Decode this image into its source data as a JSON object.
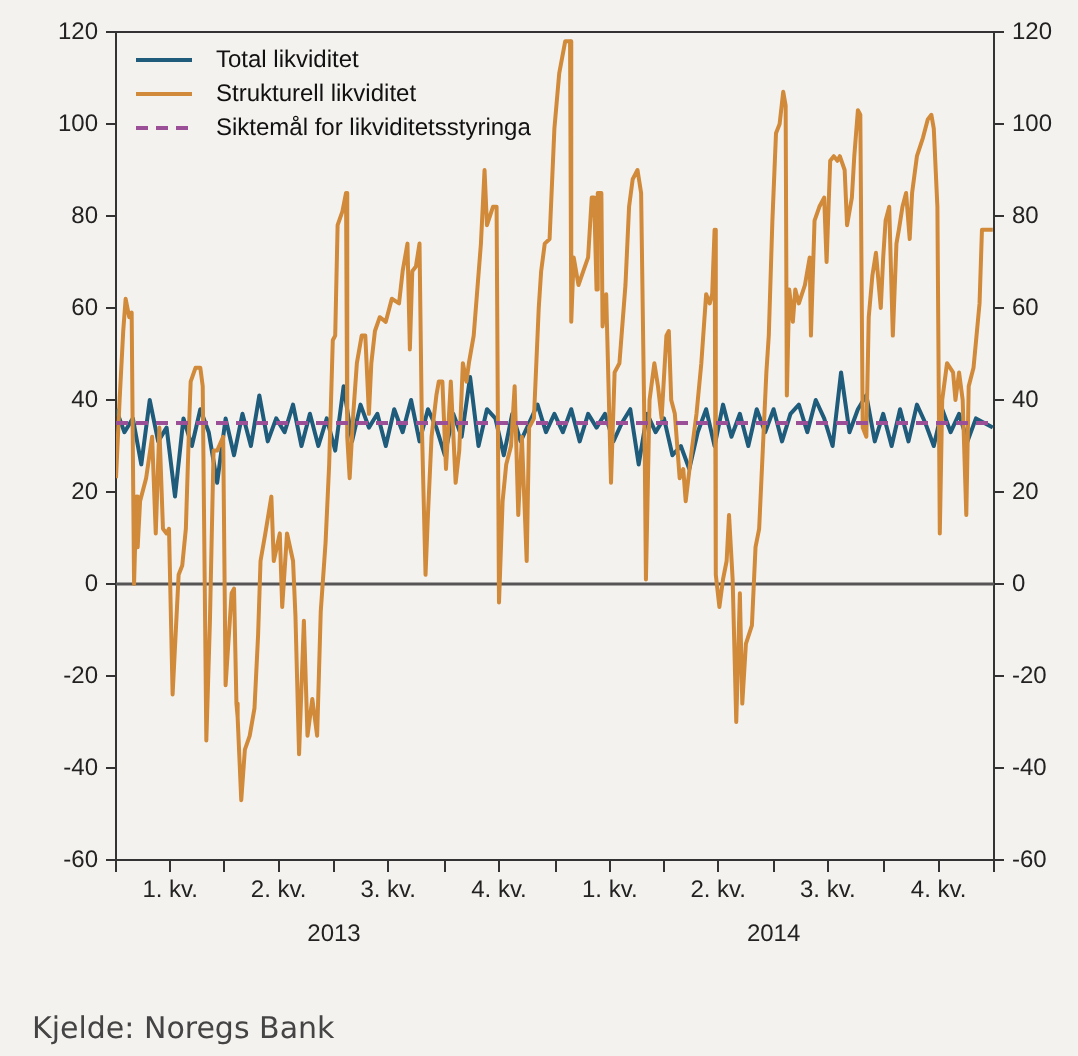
{
  "chart_data": {
    "type": "line",
    "xlim": [
      "2013-01-01",
      "2014-12-31"
    ],
    "xticks": [
      {
        "value": "2013-01-01",
        "label": null
      },
      {
        "value": "2013-02-15",
        "label": "1. kv."
      },
      {
        "value": "2013-04-01",
        "label": null
      },
      {
        "value": "2013-05-16",
        "label": "2. kv."
      },
      {
        "value": "2013-07-01",
        "label": null
      },
      {
        "value": "2013-08-15",
        "label": "3. kv."
      },
      {
        "value": "2013-10-01",
        "label": null
      },
      {
        "value": "2013-11-15",
        "label": "4. kv."
      },
      {
        "value": "2014-01-01",
        "label": null
      },
      {
        "value": "2014-02-15",
        "label": "1. kv."
      },
      {
        "value": "2014-04-01",
        "label": null
      },
      {
        "value": "2014-05-16",
        "label": "2. kv."
      },
      {
        "value": "2014-07-01",
        "label": null
      },
      {
        "value": "2014-08-15",
        "label": "3. kv."
      },
      {
        "value": "2014-10-01",
        "label": null
      },
      {
        "value": "2014-11-15",
        "label": "4. kv."
      },
      {
        "value": "2014-12-31",
        "label": null
      }
    ],
    "x2lim": [
      "2013-01-01",
      "2014-12-31"
    ],
    "x2ticks": [
      {
        "value": "2013-07-01",
        "label": "2013"
      },
      {
        "value": "2014-07-01",
        "label": "2014"
      }
    ],
    "ylim": [
      -60,
      120
    ],
    "yticks": [
      -60,
      -40,
      -20,
      0,
      20,
      40,
      60,
      80,
      100,
      120
    ],
    "y2lim": [
      -60,
      120
    ],
    "y2ticks": [
      -60,
      -40,
      -20,
      0,
      20,
      40,
      60,
      80,
      100,
      120
    ],
    "grid": false,
    "legend": "top left",
    "marker": "none",
    "ref_lines": [
      {
        "axis": "y",
        "value": 0,
        "color": "#555555"
      }
    ],
    "annotations": [
      "Kjelde: Noregs Bank"
    ],
    "series": [
      {
        "name": "Total likviditet",
        "color": "#1f5b7a",
        "line_style": "solid",
        "x": [
          "2013-01-01",
          "2013-01-08",
          "2013-01-15",
          "2013-01-22",
          "2013-01-29",
          "2013-02-05",
          "2013-02-12",
          "2013-02-19",
          "2013-02-26",
          "2013-03-05",
          "2013-03-12",
          "2013-03-19",
          "2013-03-26",
          "2013-04-02",
          "2013-04-09",
          "2013-04-16",
          "2013-04-23",
          "2013-04-30",
          "2013-05-07",
          "2013-05-14",
          "2013-05-21",
          "2013-05-28",
          "2013-06-04",
          "2013-06-11",
          "2013-06-18",
          "2013-06-25",
          "2013-07-02",
          "2013-07-09",
          "2013-07-16",
          "2013-07-23",
          "2013-07-30",
          "2013-08-06",
          "2013-08-13",
          "2013-08-20",
          "2013-08-27",
          "2013-09-03",
          "2013-09-10",
          "2013-09-17",
          "2013-09-24",
          "2013-10-01",
          "2013-10-08",
          "2013-10-15",
          "2013-10-22",
          "2013-10-29",
          "2013-11-05",
          "2013-11-12",
          "2013-11-19",
          "2013-11-26",
          "2013-12-03",
          "2013-12-10",
          "2013-12-17",
          "2013-12-24",
          "2013-12-31",
          "2014-01-07",
          "2014-01-14",
          "2014-01-21",
          "2014-01-28",
          "2014-02-04",
          "2014-02-11",
          "2014-02-18",
          "2014-02-25",
          "2014-03-04",
          "2014-03-11",
          "2014-03-18",
          "2014-03-25",
          "2014-04-01",
          "2014-04-08",
          "2014-04-15",
          "2014-04-22",
          "2014-04-29",
          "2014-05-06",
          "2014-05-13",
          "2014-05-20",
          "2014-05-27",
          "2014-06-03",
          "2014-06-10",
          "2014-06-17",
          "2014-06-24",
          "2014-07-01",
          "2014-07-08",
          "2014-07-15",
          "2014-07-22",
          "2014-07-29",
          "2014-08-05",
          "2014-08-12",
          "2014-08-19",
          "2014-08-26",
          "2014-09-02",
          "2014-09-09",
          "2014-09-16",
          "2014-09-23",
          "2014-09-30",
          "2014-10-07",
          "2014-10-14",
          "2014-10-21",
          "2014-10-28",
          "2014-11-04",
          "2014-11-11",
          "2014-11-18",
          "2014-11-25",
          "2014-12-02",
          "2014-12-09",
          "2014-12-16",
          "2014-12-23",
          "2014-12-30"
        ],
        "values": [
          38,
          33,
          36,
          26,
          40,
          31,
          34,
          19,
          36,
          30,
          38,
          33,
          22,
          36,
          28,
          37,
          30,
          41,
          31,
          36,
          33,
          39,
          30,
          37,
          30,
          36,
          29,
          43,
          31,
          39,
          34,
          37,
          30,
          38,
          33,
          40,
          31,
          38,
          34,
          28,
          37,
          32,
          45,
          30,
          38,
          36,
          28,
          37,
          31,
          35,
          39,
          33,
          37,
          33,
          38,
          31,
          37,
          34,
          37,
          31,
          35,
          38,
          26,
          37,
          33,
          36,
          28,
          30,
          25,
          33,
          38,
          30,
          39,
          32,
          37,
          30,
          38,
          33,
          38,
          31,
          37,
          39,
          33,
          40,
          36,
          30,
          46,
          33,
          38,
          41,
          31,
          37,
          30,
          38,
          31,
          39,
          35,
          30,
          38,
          33,
          37,
          31,
          36,
          35,
          34
        ]
      },
      {
        "name": "Strukturell likviditet",
        "color": "#d08a3a",
        "line_style": "solid",
        "x": [
          "2013-01-01",
          "2013-01-04",
          "2013-01-07",
          "2013-01-09",
          "2013-01-12",
          "2013-01-14",
          "2013-01-15",
          "2013-01-16",
          "2013-01-18",
          "2013-01-19",
          "2013-01-21",
          "2013-01-26",
          "2013-01-31",
          "2013-02-03",
          "2013-02-06",
          "2013-02-09",
          "2013-02-12",
          "2013-02-14",
          "2013-02-17",
          "2013-02-22",
          "2013-02-25",
          "2013-02-28",
          "2013-03-03",
          "2013-03-04",
          "2013-03-08",
          "2013-03-12",
          "2013-03-14",
          "2013-03-17",
          "2013-03-20",
          "2013-03-23",
          "2013-03-26",
          "2013-03-31",
          "2013-04-02",
          "2013-04-07",
          "2013-04-09",
          "2013-04-11",
          "2013-04-12",
          "2013-04-15",
          "2013-04-18",
          "2013-04-22",
          "2013-04-26",
          "2013-04-29",
          "2013-05-01",
          "2013-05-05",
          "2013-05-10",
          "2013-05-12",
          "2013-05-17",
          "2013-05-19",
          "2013-05-23",
          "2013-05-28",
          "2013-05-30",
          "2013-06-02",
          "2013-06-06",
          "2013-06-09",
          "2013-06-13",
          "2013-06-17",
          "2013-06-20",
          "2013-06-24",
          "2013-06-27",
          "2013-06-30",
          "2013-07-02",
          "2013-07-04",
          "2013-07-08",
          "2013-07-11",
          "2013-07-12",
          "2013-07-14",
          "2013-07-17",
          "2013-07-20",
          "2013-07-24",
          "2013-07-27",
          "2013-07-30",
          "2013-08-01",
          "2013-08-04",
          "2013-08-08",
          "2013-08-13",
          "2013-08-18",
          "2013-08-24",
          "2013-08-27",
          "2013-08-31",
          "2013-09-02",
          "2013-09-04",
          "2013-09-07",
          "2013-09-10",
          "2013-09-12",
          "2013-09-15",
          "2013-09-17",
          "2013-09-20",
          "2013-09-24",
          "2013-09-26",
          "2013-09-29",
          "2013-10-02",
          "2013-10-06",
          "2013-10-10",
          "2013-10-13",
          "2013-10-16",
          "2013-10-19",
          "2013-10-21",
          "2013-10-25",
          "2013-10-28",
          "2013-10-31",
          "2013-11-03",
          "2013-11-05",
          "2013-11-10",
          "2013-11-13",
          "2013-11-15",
          "2013-11-18",
          "2013-11-21",
          "2013-11-25",
          "2013-11-28",
          "2013-12-01",
          "2013-12-04",
          "2013-12-08",
          "2013-12-10",
          "2013-12-14",
          "2013-12-18",
          "2013-12-20",
          "2013-12-23",
          "2013-12-27",
          "2013-12-31",
          "2014-01-04",
          "2014-01-09",
          "2014-01-13",
          "2014-01-14",
          "2014-01-16",
          "2014-01-20",
          "2014-01-24",
          "2014-01-28",
          "2014-01-31",
          "2014-02-02",
          "2014-02-04",
          "2014-02-05",
          "2014-02-08",
          "2014-02-09",
          "2014-02-12",
          "2014-02-16",
          "2014-02-19",
          "2014-02-23",
          "2014-02-28",
          "2014-03-03",
          "2014-03-06",
          "2014-03-10",
          "2014-03-13",
          "2014-03-16",
          "2014-03-17",
          "2014-03-20",
          "2014-03-24",
          "2014-03-27",
          "2014-03-30",
          "2014-04-03",
          "2014-04-05",
          "2014-04-07",
          "2014-04-10",
          "2014-04-14",
          "2014-04-17",
          "2014-04-19",
          "2014-04-24",
          "2014-04-28",
          "2014-05-02",
          "2014-05-06",
          "2014-05-09",
          "2014-05-11",
          "2014-05-13",
          "2014-05-14",
          "2014-05-17",
          "2014-05-20",
          "2014-05-23",
          "2014-05-25",
          "2014-05-28",
          "2014-05-31",
          "2014-06-03",
          "2014-06-05",
          "2014-06-08",
          "2014-06-13",
          "2014-06-16",
          "2014-06-19",
          "2014-06-22",
          "2014-06-25",
          "2014-06-27",
          "2014-06-30",
          "2014-07-03",
          "2014-07-06",
          "2014-07-09",
          "2014-07-11",
          "2014-07-12",
          "2014-07-14",
          "2014-07-17",
          "2014-07-19",
          "2014-07-22",
          "2014-07-27",
          "2014-07-31",
          "2014-08-01",
          "2014-08-04",
          "2014-08-08",
          "2014-08-12",
          "2014-08-14",
          "2014-08-17",
          "2014-08-20",
          "2014-08-23",
          "2014-08-25",
          "2014-08-29",
          "2014-08-31",
          "2014-09-04",
          "2014-09-06",
          "2014-09-09",
          "2014-09-11",
          "2014-09-13",
          "2014-09-16",
          "2014-09-18",
          "2014-09-21",
          "2014-09-24",
          "2014-09-28",
          "2014-09-30",
          "2014-10-02",
          "2014-10-05",
          "2014-10-08",
          "2014-10-11",
          "2014-10-13",
          "2014-10-16",
          "2014-10-19",
          "2014-10-22",
          "2014-10-24",
          "2014-10-28",
          "2014-11-02",
          "2014-11-06",
          "2014-11-09",
          "2014-11-11",
          "2014-11-14",
          "2014-11-16",
          "2014-11-18",
          "2014-11-22",
          "2014-11-27",
          "2014-11-29",
          "2014-12-02",
          "2014-12-05",
          "2014-12-08",
          "2014-12-10",
          "2014-12-14",
          "2014-12-19",
          "2014-12-21",
          "2014-12-27",
          "2014-12-30"
        ],
        "values": [
          23,
          40,
          55,
          62,
          58,
          59,
          29,
          0,
          19,
          8,
          18,
          23,
          32,
          11,
          34,
          12,
          11,
          12,
          -24,
          2,
          4,
          12,
          37,
          44,
          47,
          47,
          43,
          -34,
          -8,
          29,
          29,
          32,
          -22,
          -2,
          -1,
          -26,
          -29,
          -47,
          -36,
          -33,
          -27,
          -11,
          5,
          11,
          19,
          5,
          11,
          -5,
          11,
          5,
          -7,
          -37,
          -8,
          -33,
          -25,
          -33,
          -6,
          9,
          26,
          53,
          54,
          78,
          81,
          85,
          32,
          23,
          37,
          48,
          54,
          54,
          37,
          48,
          55,
          58,
          57,
          62,
          61,
          68,
          74,
          51,
          68,
          69,
          74,
          34,
          2,
          15,
          32,
          41,
          44,
          44,
          25,
          44,
          22,
          29,
          48,
          44,
          48,
          54,
          64,
          74,
          90,
          78,
          82,
          82,
          -4,
          18,
          26,
          30,
          43,
          15,
          32,
          5,
          34,
          36,
          60,
          68,
          74,
          75,
          99,
          111,
          118,
          118,
          57,
          71,
          65,
          68,
          71,
          84,
          84,
          64,
          85,
          85,
          56,
          63,
          22,
          46,
          48,
          65,
          82,
          88,
          90,
          85,
          29,
          1,
          40,
          48,
          43,
          36,
          54,
          55,
          40,
          37,
          23,
          25,
          18,
          29,
          37,
          48,
          63,
          61,
          63,
          77,
          2,
          -5,
          1,
          5,
          15,
          1,
          -30,
          -2,
          -26,
          -13,
          -9,
          8,
          12,
          29,
          46,
          54,
          79,
          98,
          100,
          107,
          104,
          41,
          64,
          57,
          64,
          61,
          65,
          71,
          54,
          79,
          82,
          84,
          70,
          92,
          93,
          92,
          93,
          90,
          78,
          84,
          93,
          103,
          102,
          34,
          32,
          58,
          67,
          72,
          60,
          71,
          79,
          82,
          54,
          74,
          77,
          82,
          85,
          75,
          85,
          93,
          97,
          101,
          102,
          99,
          82,
          11,
          40,
          48,
          46,
          40,
          46,
          40,
          15,
          43,
          47,
          61,
          77,
          77,
          77
        ]
      },
      {
        "name": "Siktemål for likviditetsstyringa",
        "color": "#9b4f96",
        "line_style": "dashed",
        "x": [
          "2013-01-01",
          "2014-12-31"
        ],
        "values": [
          35,
          35
        ]
      }
    ]
  }
}
